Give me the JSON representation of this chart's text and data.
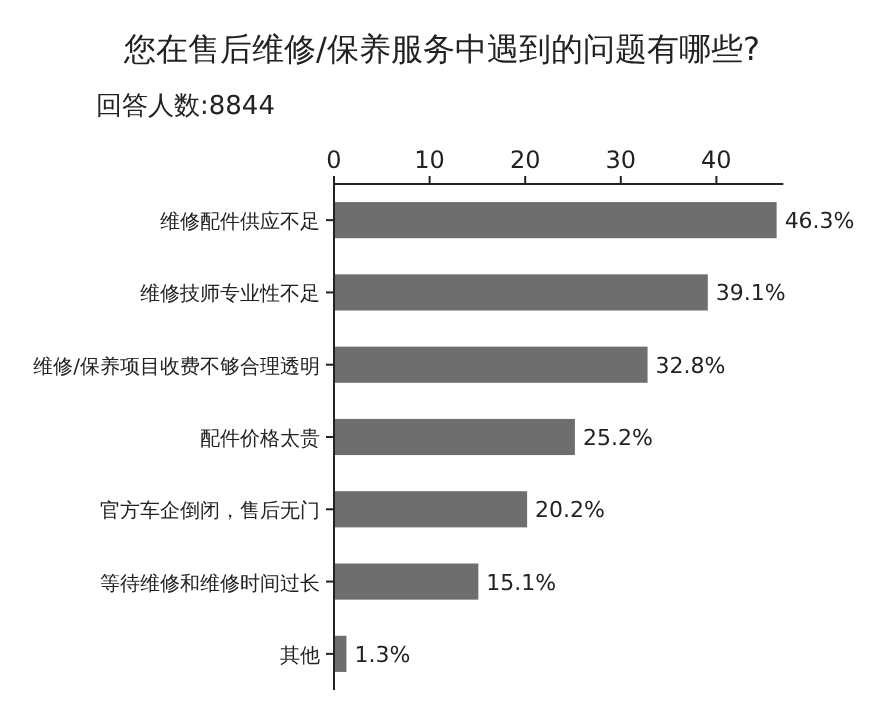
{
  "chart_data": {
    "type": "bar",
    "orientation": "horizontal",
    "title": "您在售后维修/保养服务中遇到的问题有哪些?",
    "subtitle": "回答人数:8844",
    "categories": [
      "维修配件供应不足",
      "维修技师专业性不足",
      "维修/保养项目收费不够合理透明",
      "配件价格太贵",
      "官方车企倒闭，售后无门",
      "等待维修和维修时间过长",
      "其他"
    ],
    "values": [
      46.3,
      39.1,
      32.8,
      25.2,
      20.2,
      15.1,
      1.3
    ],
    "value_labels": [
      "46.3%",
      "39.1%",
      "32.8%",
      "25.2%",
      "20.2%",
      "15.1%",
      "1.3%"
    ],
    "color": "#6e6e6e",
    "xlim": [
      0,
      47
    ],
    "xticks": [
      0,
      10,
      20,
      30,
      40
    ],
    "grid": false
  }
}
